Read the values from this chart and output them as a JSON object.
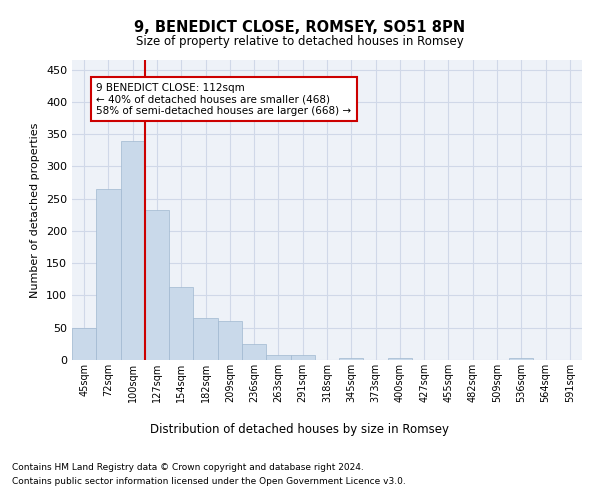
{
  "title1": "9, BENEDICT CLOSE, ROMSEY, SO51 8PN",
  "title2": "Size of property relative to detached houses in Romsey",
  "xlabel": "Distribution of detached houses by size in Romsey",
  "ylabel": "Number of detached properties",
  "bar_labels": [
    "45sqm",
    "72sqm",
    "100sqm",
    "127sqm",
    "154sqm",
    "182sqm",
    "209sqm",
    "236sqm",
    "263sqm",
    "291sqm",
    "318sqm",
    "345sqm",
    "373sqm",
    "400sqm",
    "427sqm",
    "455sqm",
    "482sqm",
    "509sqm",
    "536sqm",
    "564sqm",
    "591sqm"
  ],
  "bar_values": [
    50,
    265,
    340,
    232,
    113,
    65,
    61,
    25,
    7,
    7,
    0,
    3,
    0,
    3,
    0,
    0,
    0,
    0,
    3,
    0,
    0
  ],
  "bar_color": "#c9d9ea",
  "bar_edge_color": "#a0b8d0",
  "grid_color": "#d0d8e8",
  "background_color": "#eef2f8",
  "red_line_x": 2.5,
  "annotation_text": "9 BENEDICT CLOSE: 112sqm\n← 40% of detached houses are smaller (468)\n58% of semi-detached houses are larger (668) →",
  "annotation_box_color": "#ffffff",
  "annotation_box_edge": "#cc0000",
  "footnote1": "Contains HM Land Registry data © Crown copyright and database right 2024.",
  "footnote2": "Contains public sector information licensed under the Open Government Licence v3.0.",
  "ylim": [
    0,
    465
  ],
  "yticks": [
    0,
    50,
    100,
    150,
    200,
    250,
    300,
    350,
    400,
    450
  ]
}
